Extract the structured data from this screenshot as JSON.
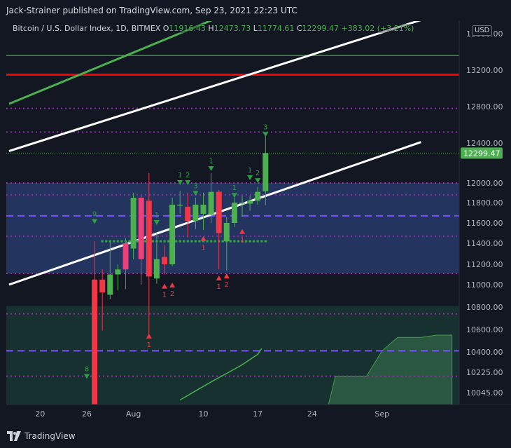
{
  "header": {
    "publisher_line": "Jack-Strainer published on TradingView.com, Sep 23, 2021 22:23 UTC"
  },
  "legend": {
    "symbol": "Bitcoin / U.S. Dollar Index, 1D, BITMEX",
    "open_label": "O",
    "open": "11916.43",
    "high_label": "H",
    "high": "12473.73",
    "low_label": "L",
    "low": "11774.61",
    "close_label": "C",
    "close": "12299.47",
    "change": "+383.02 (+3.21%)"
  },
  "currency_badge": "USD",
  "footer": {
    "brand": "TradingView"
  },
  "colors": {
    "background": "#131722",
    "up": "#4caf50",
    "down": "#f23645",
    "pink": "#ec407a",
    "channel": "#ffffff",
    "green_line": "#4caf50",
    "red_line": "#ff0000",
    "purple_dots": "#9c27b0",
    "purple_dash": "#7b4fff",
    "zone_blue": "#2a3f73",
    "zone_green": "#1a3b36"
  },
  "chart_data": {
    "type": "candlestick",
    "price_axis": {
      "ticks": [
        {
          "value": 13600,
          "label": "13600.00"
        },
        {
          "value": 13200,
          "label": "13200.00"
        },
        {
          "value": 12800,
          "label": "12800.00"
        },
        {
          "value": 12400,
          "label": "12400.00"
        },
        {
          "value": 12000,
          "label": "12000.00"
        },
        {
          "value": 11800,
          "label": "11800.00"
        },
        {
          "value": 11600,
          "label": "11600.00"
        },
        {
          "value": 11400,
          "label": "11400.00"
        },
        {
          "value": 11200,
          "label": "11200.00"
        },
        {
          "value": 11000,
          "label": "11000.00"
        },
        {
          "value": 10800,
          "label": "10800.00"
        },
        {
          "value": 10600,
          "label": "10600.00"
        },
        {
          "value": 10400,
          "label": "10400.00"
        },
        {
          "value": 10225,
          "label": "10225.00"
        },
        {
          "value": 10045,
          "label": "10045.00"
        }
      ],
      "last_price": {
        "value": 12299.47,
        "label": "12299.47"
      }
    },
    "time_axis": {
      "ticks": [
        {
          "day": -6,
          "label": "20"
        },
        {
          "day": 0,
          "label": "26"
        },
        {
          "day": 6,
          "label": "Aug"
        },
        {
          "day": 15,
          "label": "10"
        },
        {
          "day": 22,
          "label": "17"
        },
        {
          "day": 29,
          "label": "24"
        },
        {
          "day": 38,
          "label": "Sep"
        }
      ]
    },
    "candles": [
      {
        "day": 1,
        "o": 9910,
        "h": 11420,
        "l": 9800,
        "c": 11050,
        "color": "down"
      },
      {
        "day": 2,
        "o": 11050,
        "h": 11150,
        "l": 10590,
        "c": 10930,
        "color": "down"
      },
      {
        "day": 3,
        "o": 10910,
        "h": 11420,
        "l": 10870,
        "c": 11100,
        "color": "up"
      },
      {
        "day": 4,
        "o": 11100,
        "h": 11200,
        "l": 10950,
        "c": 11150,
        "color": "up"
      },
      {
        "day": 5,
        "o": 11150,
        "h": 11450,
        "l": 10960,
        "c": 11400,
        "color": "pink"
      },
      {
        "day": 6,
        "o": 11350,
        "h": 11900,
        "l": 11250,
        "c": 11850,
        "color": "up"
      },
      {
        "day": 7,
        "o": 11850,
        "h": 11870,
        "l": 11000,
        "c": 11250,
        "color": "pink"
      },
      {
        "day": 8,
        "o": 11820,
        "h": 12100,
        "l": 10560,
        "c": 11080,
        "color": "down"
      },
      {
        "day": 9,
        "o": 11060,
        "h": 11500,
        "l": 11010,
        "c": 11250,
        "color": "up"
      },
      {
        "day": 10,
        "o": 11270,
        "h": 11380,
        "l": 11100,
        "c": 11200,
        "color": "down"
      },
      {
        "day": 11,
        "o": 11200,
        "h": 11850,
        "l": 11180,
        "c": 11780,
        "color": "up"
      },
      {
        "day": 12,
        "o": 11780,
        "h": 11920,
        "l": 11690,
        "c": 11770,
        "color": "up"
      },
      {
        "day": 13,
        "o": 11760,
        "h": 11900,
        "l": 11460,
        "c": 11620,
        "color": "down"
      },
      {
        "day": 14,
        "o": 11620,
        "h": 11850,
        "l": 11540,
        "c": 11780,
        "color": "up"
      },
      {
        "day": 15,
        "o": 11780,
        "h": 11900,
        "l": 11530,
        "c": 11690,
        "color": "up"
      },
      {
        "day": 16,
        "o": 11680,
        "h": 12100,
        "l": 11600,
        "c": 11910,
        "color": "up"
      },
      {
        "day": 17,
        "o": 11910,
        "h": 11930,
        "l": 11150,
        "c": 11500,
        "color": "down"
      },
      {
        "day": 18,
        "o": 11420,
        "h": 11660,
        "l": 11140,
        "c": 11600,
        "color": "up"
      },
      {
        "day": 19,
        "o": 11600,
        "h": 11850,
        "l": 11560,
        "c": 11800,
        "color": "up"
      },
      {
        "day": 20,
        "o": 11790,
        "h": 11870,
        "l": 11660,
        "c": 11800,
        "color": "up"
      },
      {
        "day": 21,
        "o": 11790,
        "h": 11870,
        "l": 11720,
        "c": 11820,
        "color": "up"
      },
      {
        "day": 22,
        "o": 11820,
        "h": 11960,
        "l": 11780,
        "c": 11910,
        "color": "up"
      },
      {
        "day": 23,
        "o": 11916.43,
        "h": 12473.73,
        "l": 11774.61,
        "c": 12299.47,
        "color": "up"
      }
    ],
    "td_marks": [
      {
        "day": 0,
        "price": 10185,
        "label": "8",
        "dir": "down"
      },
      {
        "day": 1,
        "price": 11610,
        "label": "9",
        "dir": "down"
      },
      {
        "day": 8,
        "price": 10545,
        "label": "1",
        "dir": "up"
      },
      {
        "day": 9,
        "price": 11600,
        "label": "1",
        "dir": "down"
      },
      {
        "day": 10,
        "price": 10990,
        "label": "1",
        "dir": "up"
      },
      {
        "day": 11,
        "price": 11000,
        "label": "2",
        "dir": "up"
      },
      {
        "day": 12,
        "price": 12000,
        "label": "1",
        "dir": "down"
      },
      {
        "day": 13,
        "price": 12000,
        "label": "2",
        "dir": "down"
      },
      {
        "day": 14,
        "price": 11890,
        "label": "3",
        "dir": "down"
      },
      {
        "day": 15,
        "price": 11450,
        "label": "1",
        "dir": "up"
      },
      {
        "day": 16,
        "price": 12140,
        "label": "1",
        "dir": "down"
      },
      {
        "day": 17,
        "price": 11070,
        "label": "1",
        "dir": "up"
      },
      {
        "day": 18,
        "price": 11090,
        "label": "2",
        "dir": "up"
      },
      {
        "day": 19,
        "price": 11870,
        "label": "1",
        "dir": "down"
      },
      {
        "day": 20,
        "price": 11520,
        "label": "1",
        "dir": "up"
      },
      {
        "day": 21,
        "price": 12050,
        "label": "1",
        "dir": "down"
      },
      {
        "day": 22,
        "price": 12020,
        "label": "2",
        "dir": "down"
      },
      {
        "day": 23,
        "price": 12490,
        "label": "3",
        "dir": "down"
      }
    ],
    "horizontal_levels": [
      {
        "price": 13360,
        "style": "solid",
        "color": "green_line"
      },
      {
        "price": 13150,
        "style": "solid-thick",
        "color": "red_line"
      },
      {
        "price": 12780,
        "style": "dotted",
        "color": "purple_dots"
      },
      {
        "price": 12520,
        "style": "dotted",
        "color": "purple_dots"
      },
      {
        "price": 12000,
        "style": "dotted",
        "color": "purple_dots"
      },
      {
        "price": 11880,
        "style": "dotted",
        "color": "purple_dots"
      },
      {
        "price": 11670,
        "style": "dashed",
        "color": "purple_dash"
      },
      {
        "price": 11470,
        "style": "dotted",
        "color": "purple_dots"
      },
      {
        "price": 11110,
        "style": "dotted",
        "color": "purple_dots"
      },
      {
        "price": 10740,
        "style": "dotted",
        "color": "purple_dots"
      },
      {
        "price": 10410,
        "style": "dashed",
        "color": "purple_dash"
      },
      {
        "price": 10190,
        "style": "dotted",
        "color": "purple_dots"
      }
    ],
    "zones": [
      {
        "from": 11110,
        "to": 12000,
        "color": "zone_blue"
      },
      {
        "from": 9900,
        "to": 10810,
        "color": "zone_green"
      }
    ],
    "channel_lines": [
      {
        "from": {
          "day": -10,
          "price": 12320
        },
        "to": {
          "day": 43,
          "price": 13750
        },
        "color": "channel"
      },
      {
        "from": {
          "day": -10,
          "price": 11000
        },
        "to": {
          "day": 43,
          "price": 12410
        },
        "color": "channel"
      },
      {
        "from": {
          "day": -10,
          "price": 12830
        },
        "to": {
          "day": 17,
          "price": 13780
        },
        "color": "green_line"
      }
    ],
    "green_curve": [
      {
        "day": 12,
        "price": 9980
      },
      {
        "day": 14,
        "price": 10060
      },
      {
        "day": 16,
        "price": 10140
      },
      {
        "day": 18,
        "price": 10215
      },
      {
        "day": 20,
        "price": 10290
      },
      {
        "day": 22,
        "price": 10380
      },
      {
        "day": 22.5,
        "price": 10430
      }
    ],
    "green_area": [
      {
        "day": 31,
        "price": 9910
      },
      {
        "day": 32,
        "price": 10190
      },
      {
        "day": 36,
        "price": 10190
      },
      {
        "day": 38,
        "price": 10410
      },
      {
        "day": 40,
        "price": 10530
      },
      {
        "day": 43,
        "price": 10530
      },
      {
        "day": 45,
        "price": 10550
      },
      {
        "day": 47,
        "price": 10550
      }
    ],
    "green_dot_row": {
      "price": 11420,
      "from_day": 2,
      "to_day": 23
    }
  }
}
